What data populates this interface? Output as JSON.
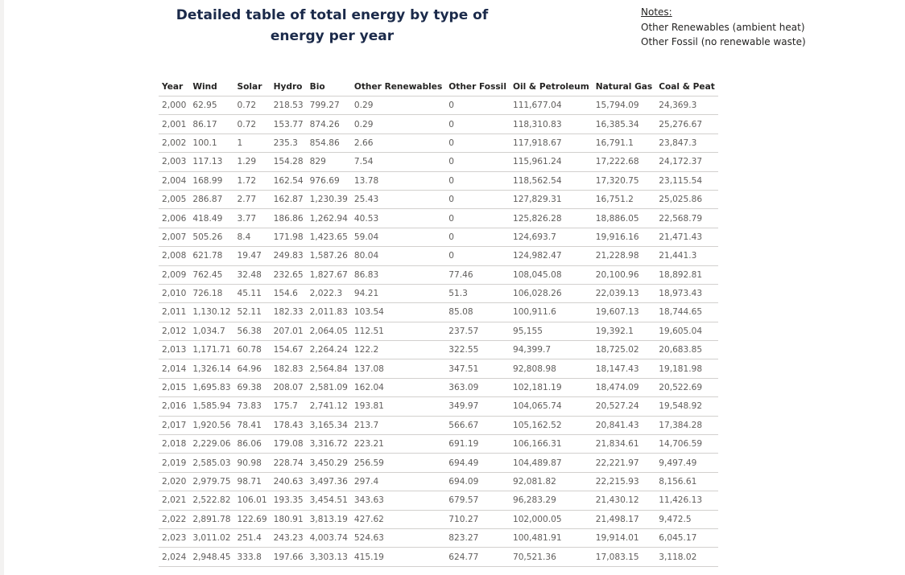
{
  "title": "Detailed table of total energy by type of energy per year",
  "notes": {
    "heading": "Notes:",
    "lines": [
      "Other Renewables (ambient heat)",
      "Other Fossil (no renewable waste)"
    ]
  },
  "table": {
    "columns": [
      "Year",
      "Wind",
      "Solar",
      "Hydro",
      "Bio",
      "Other Renewables",
      "Other Fossil",
      "Oil & Petroleum",
      "Natural Gas",
      "Coal & Peat"
    ],
    "rows": [
      [
        "2,000",
        "62.95",
        "0.72",
        "218.53",
        "799.27",
        "0.29",
        "0",
        "111,677.04",
        "15,794.09",
        "24,369.3"
      ],
      [
        "2,001",
        "86.17",
        "0.72",
        "153.77",
        "874.26",
        "0.29",
        "0",
        "118,310.83",
        "16,385.34",
        "25,276.67"
      ],
      [
        "2,002",
        "100.1",
        "1",
        "235.3",
        "854.86",
        "2.66",
        "0",
        "117,918.67",
        "16,791.1",
        "23,847.3"
      ],
      [
        "2,003",
        "117.13",
        "1.29",
        "154.28",
        "829",
        "7.54",
        "0",
        "115,961.24",
        "17,222.68",
        "24,172.37"
      ],
      [
        "2,004",
        "168.99",
        "1.72",
        "162.54",
        "976.69",
        "13.78",
        "0",
        "118,562.54",
        "17,320.75",
        "23,115.54"
      ],
      [
        "2,005",
        "286.87",
        "2.77",
        "162.87",
        "1,230.39",
        "25.43",
        "0",
        "127,829.31",
        "16,751.2",
        "25,025.86"
      ],
      [
        "2,006",
        "418.49",
        "3.77",
        "186.86",
        "1,262.94",
        "40.53",
        "0",
        "125,826.28",
        "18,886.05",
        "22,568.79"
      ],
      [
        "2,007",
        "505.26",
        "8.4",
        "171.98",
        "1,423.65",
        "59.04",
        "0",
        "124,693.7",
        "19,916.16",
        "21,471.43"
      ],
      [
        "2,008",
        "621.78",
        "19.47",
        "249.83",
        "1,587.26",
        "80.04",
        "0",
        "124,982.47",
        "21,228.98",
        "21,441.3"
      ],
      [
        "2,009",
        "762.45",
        "32.48",
        "232.65",
        "1,827.67",
        "86.83",
        "77.46",
        "108,045.08",
        "20,100.96",
        "18,892.81"
      ],
      [
        "2,010",
        "726.18",
        "45.11",
        "154.6",
        "2,022.3",
        "94.21",
        "51.3",
        "106,028.26",
        "22,039.13",
        "18,973.43"
      ],
      [
        "2,011",
        "1,130.12",
        "52.11",
        "182.33",
        "2,011.83",
        "103.54",
        "85.08",
        "100,911.6",
        "19,607.13",
        "18,744.65"
      ],
      [
        "2,012",
        "1,034.7",
        "56.38",
        "207.01",
        "2,064.05",
        "112.51",
        "237.57",
        "95,155",
        "19,392.1",
        "19,605.04"
      ],
      [
        "2,013",
        "1,171.71",
        "60.78",
        "154.67",
        "2,264.24",
        "122.2",
        "322.55",
        "94,399.7",
        "18,725.02",
        "20,683.85"
      ],
      [
        "2,014",
        "1,326.14",
        "64.96",
        "182.83",
        "2,564.84",
        "137.08",
        "347.51",
        "92,808.98",
        "18,147.43",
        "19,181.98"
      ],
      [
        "2,015",
        "1,695.83",
        "69.38",
        "208.07",
        "2,581.09",
        "162.04",
        "363.09",
        "102,181.19",
        "18,474.09",
        "20,522.69"
      ],
      [
        "2,016",
        "1,585.94",
        "73.83",
        "175.7",
        "2,741.12",
        "193.81",
        "349.97",
        "104,065.74",
        "20,527.24",
        "19,548.92"
      ],
      [
        "2,017",
        "1,920.56",
        "78.41",
        "178.43",
        "3,165.34",
        "213.7",
        "566.67",
        "105,162.52",
        "20,841.43",
        "17,384.28"
      ],
      [
        "2,018",
        "2,229.06",
        "86.06",
        "179.08",
        "3,316.72",
        "223.21",
        "691.19",
        "106,166.31",
        "21,834.61",
        "14,706.59"
      ],
      [
        "2,019",
        "2,585.03",
        "90.98",
        "228.74",
        "3,450.29",
        "256.59",
        "694.49",
        "104,489.87",
        "22,221.97",
        "9,497.49"
      ],
      [
        "2,020",
        "2,979.75",
        "98.71",
        "240.63",
        "3,497.36",
        "297.4",
        "694.09",
        "92,081.82",
        "22,215.93",
        "8,156.61"
      ],
      [
        "2,021",
        "2,522.82",
        "106.01",
        "193.35",
        "3,454.51",
        "343.63",
        "679.57",
        "96,283.29",
        "21,430.12",
        "11,426.13"
      ],
      [
        "2,022",
        "2,891.78",
        "122.69",
        "180.91",
        "3,813.19",
        "427.62",
        "710.27",
        "102,000.05",
        "21,498.17",
        "9,472.5"
      ],
      [
        "2,023",
        "3,011.02",
        "251.4",
        "243.23",
        "4,003.74",
        "524.63",
        "823.27",
        "100,481.91",
        "19,914.01",
        "6,045.17"
      ],
      [
        "2,024",
        "2,948.45",
        "333.8",
        "197.66",
        "3,303.13",
        "415.19",
        "624.77",
        "70,521.36",
        "17,083.15",
        "3,118.02"
      ]
    ]
  }
}
